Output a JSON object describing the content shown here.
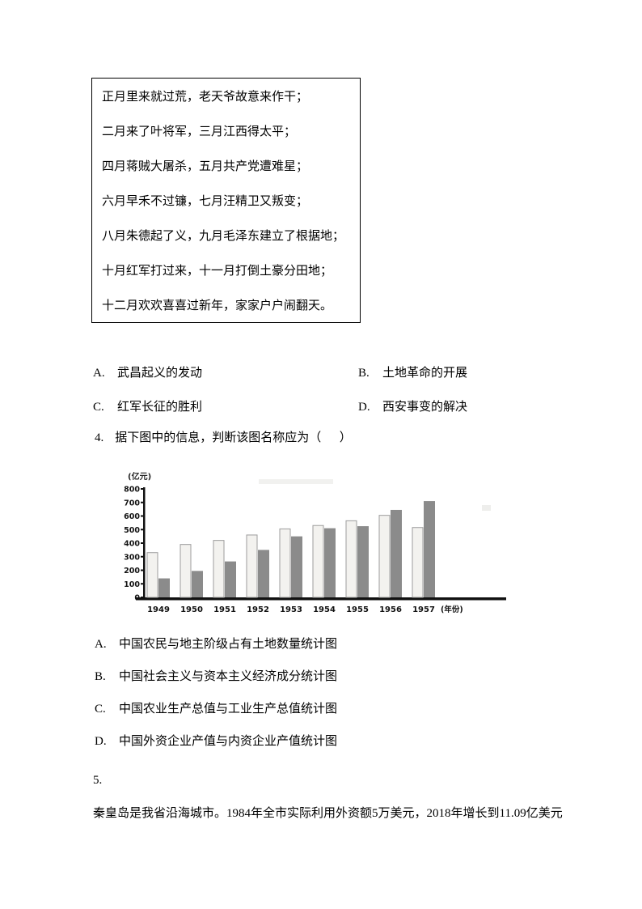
{
  "quote_box": {
    "lines": [
      "正月里来就过荒，老天爷故意来作干；",
      "二月来了叶将军，三月江西得太平；",
      "四月蒋贼大屠杀，五月共产党遭难星；",
      "六月早禾不过镰，七月汪精卫又叛变；",
      "八月朱德起了义，九月毛泽东建立了根据地；",
      "十月红军打过来，十一月打倒土豪分田地；",
      "十二月欢欢喜喜过新年，家家户户闹翻天。"
    ]
  },
  "question3": {
    "options": [
      {
        "label": "A.",
        "text": "武昌起义的发动"
      },
      {
        "label": "B.",
        "text": "土地革命的开展"
      },
      {
        "label": "C.",
        "text": "红军长征的胜利"
      },
      {
        "label": "D.",
        "text": "西安事变的解决"
      }
    ]
  },
  "question4": {
    "number": "4.",
    "stem": "据下图中的信息，判断该图名称应为（      ）",
    "options": [
      {
        "label": "A.",
        "text": "中国农民与地主阶级占有土地数量统计图"
      },
      {
        "label": "B.",
        "text": "中国社会主义与资本主义经济成分统计图"
      },
      {
        "label": "C.",
        "text": "中国农业生产总值与工业生产总值统计图"
      },
      {
        "label": "D.",
        "text": "中国外资企业产值与内资企业产值统计图"
      }
    ]
  },
  "chart_data": {
    "type": "bar",
    "title": "",
    "y_unit_label": "(亿元)",
    "x_unit_label": "(年份)",
    "categories": [
      "1949",
      "1950",
      "1951",
      "1952",
      "1953",
      "1954",
      "1955",
      "1956",
      "1957"
    ],
    "series": [
      {
        "name": "浅色柱(系列1)",
        "values": [
          330,
          390,
          420,
          460,
          505,
          530,
          565,
          605,
          515
        ],
        "fill": "#f3f2ef",
        "stroke": "#9c9c9c"
      },
      {
        "name": "深色柱(系列2)",
        "values": [
          140,
          195,
          265,
          350,
          450,
          510,
          525,
          645,
          710
        ],
        "fill": "#8b8b8b",
        "stroke": "#7d7d7d"
      }
    ],
    "ylim": [
      0,
      800
    ],
    "ytick_step": 100,
    "grid": false,
    "legend": "none",
    "axis_color": "#111111"
  },
  "question5": {
    "number": "5.",
    "text": "秦皇岛是我省沿海城市。1984年全市实际利用外资额5万美元，2018年增长到11.09亿美元"
  }
}
